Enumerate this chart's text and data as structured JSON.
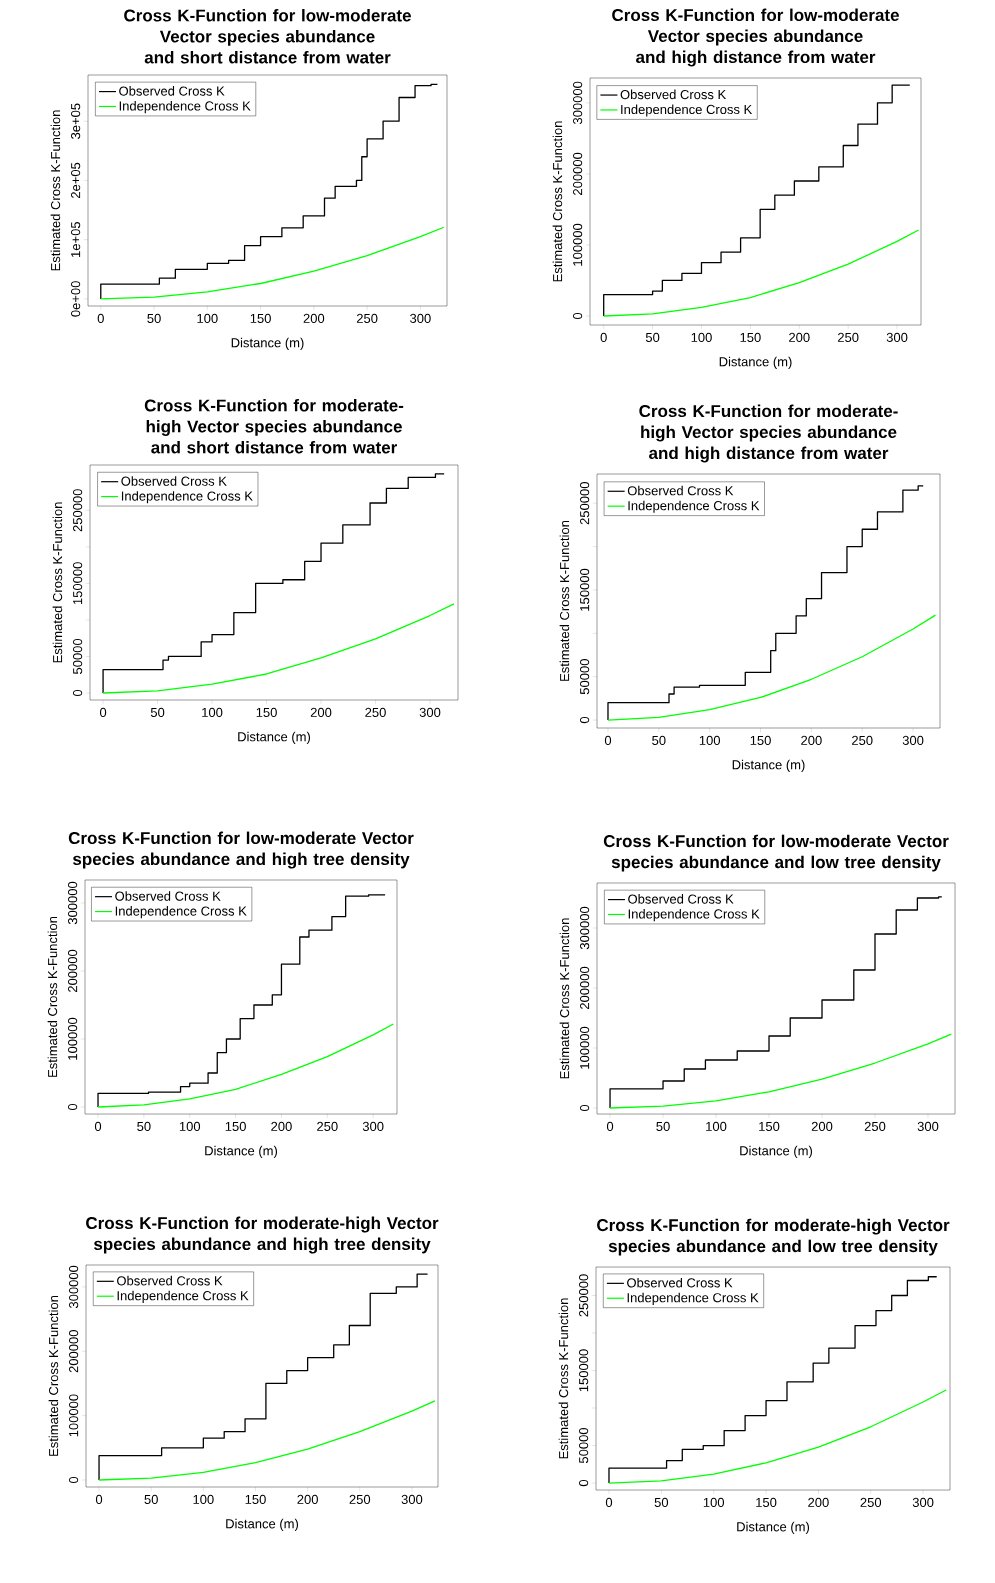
{
  "chart_data": [
    {
      "type": "line",
      "title": "Cross K-Function for low-moderate Vector species abundance and short distance from water",
      "xlabel": "Distance (m)",
      "ylabel": "Estimated Cross K-Function",
      "legend": "top left",
      "xlim": [
        -12,
        325
      ],
      "ylim": [
        -12000,
        378000
      ],
      "xticks": [
        0,
        50,
        100,
        150,
        200,
        250,
        300
      ],
      "yticks": [
        {
          "value": 0,
          "label": "0e+00"
        },
        {
          "value": 100000,
          "label": "1e+05"
        },
        {
          "value": 200000,
          "label": "2e+05"
        },
        {
          "value": 300000,
          "label": "3e+05"
        }
      ],
      "series": [
        {
          "name": "Observed Cross K",
          "type": "step",
          "color": "#000000",
          "x": [
            0,
            0,
            55,
            70,
            100,
            120,
            135,
            150,
            170,
            190,
            210,
            220,
            240,
            245,
            250,
            265,
            280,
            295,
            310,
            316
          ],
          "values": [
            0,
            25000,
            35000,
            50000,
            60000,
            65000,
            90000,
            105000,
            120000,
            140000,
            170000,
            190000,
            200000,
            240000,
            270000,
            300000,
            340000,
            360000,
            362000,
            362000
          ]
        },
        {
          "name": "Independence Cross K",
          "color": "#00ff00",
          "x": [
            0,
            50,
            100,
            150,
            200,
            250,
            300,
            322
          ],
          "values": [
            0,
            3000,
            12000,
            26000,
            47000,
            73000,
            105000,
            121000
          ]
        }
      ]
    },
    {
      "type": "line",
      "title": "Cross K-Function for low-moderate Vector species abundance and high distance from water",
      "xlabel": "Distance (m)",
      "ylabel": "Estimated Cross K-Function",
      "legend": "top left",
      "xlim": [
        -14,
        324.5
      ],
      "ylim": [
        -12700,
        335000
      ],
      "xticks": [
        0,
        50,
        100,
        150,
        200,
        250,
        300
      ],
      "yticks": [
        0,
        100000,
        200000,
        300000
      ],
      "series": [
        {
          "name": "Observed Cross K",
          "type": "step",
          "color": "#000000",
          "x": [
            0,
            0,
            50,
            60,
            80,
            100,
            120,
            140,
            160,
            175,
            195,
            220,
            245,
            260,
            280,
            295,
            312,
            313
          ],
          "values": [
            0,
            30000,
            35000,
            50000,
            60000,
            75000,
            90000,
            110000,
            150000,
            170000,
            190000,
            210000,
            240000,
            270000,
            300000,
            325000,
            325000,
            325000
          ]
        },
        {
          "name": "Independence Cross K",
          "type": "line",
          "color": "#00ff00",
          "x": [
            0,
            50,
            100,
            150,
            200,
            250,
            300,
            322
          ],
          "values": [
            0,
            3000,
            12000,
            26000,
            47000,
            73000,
            105000,
            121000
          ]
        }
      ]
    },
    {
      "type": "line",
      "title": "Cross K-Function for moderate-high Vector species abundance and short distance from water",
      "xlabel": "Distance (m)",
      "ylabel": "Estimated Cross K-Function",
      "legend": "top left",
      "xlim": [
        -12,
        325.7
      ],
      "ylim": [
        -9600,
        312000
      ],
      "xticks": [
        0,
        50,
        100,
        150,
        200,
        250,
        300
      ],
      "yticks": [
        0,
        50000,
        {
          "value": 100000,
          "label": null
        },
        150000,
        {
          "value": 200000,
          "label": null
        },
        250000
      ],
      "series": [
        {
          "name": "Observed Cross K",
          "type": "step",
          "color": "#000000",
          "x": [
            0,
            0,
            55,
            60,
            90,
            100,
            120,
            140,
            165,
            185,
            200,
            220,
            245,
            260,
            280,
            305,
            313
          ],
          "values": [
            0,
            32000,
            45000,
            50000,
            70000,
            80000,
            110000,
            150000,
            155000,
            180000,
            205000,
            230000,
            260000,
            280000,
            295000,
            300000,
            300000
          ]
        },
        {
          "name": "Independence Cross K",
          "type": "line",
          "color": "#00ff00",
          "x": [
            0,
            50,
            100,
            150,
            200,
            250,
            300,
            322
          ],
          "values": [
            0,
            3000,
            12000,
            26000,
            48000,
            74000,
            106000,
            122000
          ]
        }
      ]
    },
    {
      "type": "line",
      "title": "Cross K-Function for moderate-high Vector species abundance and high distance from water",
      "xlabel": "Distance (m)",
      "ylabel": "Estimated Cross K-Function",
      "legend": "top left",
      "xlim": [
        -10.8,
        326.5
      ],
      "ylim": [
        -9200,
        283700
      ],
      "xticks": [
        0,
        50,
        100,
        150,
        200,
        250,
        300
      ],
      "yticks": [
        0,
        50000,
        {
          "value": 100000,
          "label": null
        },
        150000,
        {
          "value": 200000,
          "label": null
        },
        250000
      ],
      "series": [
        {
          "name": "Observed Cross K",
          "type": "step",
          "color": "#000000",
          "x": [
            0,
            0,
            60,
            65,
            90,
            135,
            160,
            165,
            185,
            195,
            210,
            235,
            250,
            265,
            290,
            305,
            310
          ],
          "values": [
            0,
            20000,
            30000,
            38000,
            40000,
            55000,
            80000,
            100000,
            120000,
            140000,
            170000,
            200000,
            220000,
            240000,
            265000,
            270000,
            270000
          ]
        },
        {
          "name": "Independence Cross K",
          "type": "line",
          "color": "#00ff00",
          "x": [
            0,
            50,
            100,
            150,
            200,
            250,
            300,
            322
          ],
          "values": [
            0,
            3000,
            12000,
            26000,
            47000,
            73000,
            105000,
            121000
          ]
        }
      ]
    },
    {
      "type": "line",
      "title": "Cross K-Function for low-moderate Vector species abundance and high tree density",
      "xlabel": "Distance (m)",
      "ylabel": "Estimated Cross K-Function",
      "legend": "top left",
      "xlim": [
        -14.2,
        326
      ],
      "ylim": [
        -10300,
        333800
      ],
      "xticks": [
        0,
        50,
        100,
        150,
        200,
        250,
        300
      ],
      "yticks": [
        0,
        100000,
        200000,
        300000
      ],
      "series": [
        {
          "name": "Observed Cross K",
          "type": "step",
          "color": "#000000",
          "x": [
            0,
            0,
            55,
            90,
            100,
            120,
            130,
            140,
            155,
            170,
            190,
            200,
            220,
            230,
            255,
            270,
            295,
            313
          ],
          "values": [
            0,
            20000,
            22000,
            30000,
            35000,
            50000,
            80000,
            100000,
            130000,
            150000,
            165000,
            210000,
            250000,
            260000,
            280000,
            310000,
            312000,
            312000
          ]
        },
        {
          "name": "Independence Cross K",
          "type": "line",
          "color": "#00ff00",
          "x": [
            0,
            50,
            100,
            150,
            200,
            250,
            300,
            322
          ],
          "values": [
            0,
            3000,
            12000,
            26000,
            48000,
            74000,
            106000,
            122000
          ]
        }
      ]
    },
    {
      "type": "line",
      "title": "Cross K-Function for low-moderate Vector species abundance and low tree density",
      "xlabel": "Distance (m)",
      "ylabel": "Estimated Cross K-Function",
      "legend": "top left",
      "xlim": [
        -12.3,
        325.5
      ],
      "ylim": [
        -10000,
        375000
      ],
      "xticks": [
        0,
        50,
        100,
        150,
        200,
        250,
        300
      ],
      "yticks": [
        0,
        100000,
        200000,
        300000
      ],
      "series": [
        {
          "name": "Observed Cross K",
          "type": "step",
          "color": "#000000",
          "x": [
            0,
            0,
            50,
            70,
            90,
            120,
            150,
            170,
            200,
            230,
            250,
            270,
            290,
            310,
            313
          ],
          "values": [
            0,
            32000,
            45000,
            65000,
            80000,
            95000,
            120000,
            150000,
            180000,
            230000,
            290000,
            330000,
            350000,
            352000,
            352000
          ]
        },
        {
          "name": "Independence Cross K",
          "type": "line",
          "color": "#00ff00",
          "x": [
            0,
            50,
            100,
            150,
            200,
            250,
            300,
            322
          ],
          "values": [
            0,
            3000,
            12000,
            27000,
            48000,
            75000,
            107000,
            123000
          ]
        }
      ]
    },
    {
      "type": "line",
      "title": "Cross K-Function for moderate-high Vector species abundance and high tree density",
      "xlabel": "Distance (m)",
      "ylabel": "Estimated Cross K-Function",
      "legend": "top left",
      "xlim": [
        -12.5,
        325
      ],
      "ylim": [
        -10900,
        334000
      ],
      "xticks": [
        0,
        50,
        100,
        150,
        200,
        250,
        300
      ],
      "yticks": [
        0,
        100000,
        200000,
        300000
      ],
      "series": [
        {
          "name": "Observed Cross K",
          "type": "step",
          "color": "#000000",
          "x": [
            0,
            0,
            60,
            100,
            120,
            140,
            160,
            180,
            200,
            225,
            240,
            260,
            285,
            305,
            315
          ],
          "values": [
            0,
            38000,
            50000,
            65000,
            75000,
            95000,
            150000,
            170000,
            190000,
            210000,
            240000,
            290000,
            300000,
            320000,
            320000
          ]
        },
        {
          "name": "Independence Cross K",
          "type": "line",
          "color": "#00ff00",
          "x": [
            0,
            50,
            100,
            150,
            200,
            250,
            300,
            322
          ],
          "values": [
            0,
            3000,
            12000,
            27000,
            48000,
            75000,
            107000,
            123000
          ]
        }
      ]
    },
    {
      "type": "line",
      "title": "Cross K-Function for moderate-high Vector species abundance and low tree density",
      "xlabel": "Distance (m)",
      "ylabel": "Estimated Cross K-Function",
      "legend": "top left",
      "xlim": [
        -12.4,
        325.7
      ],
      "ylim": [
        -9300,
        288000
      ],
      "xticks": [
        0,
        50,
        100,
        150,
        200,
        250,
        300
      ],
      "yticks": [
        0,
        50000,
        {
          "value": 100000,
          "label": null
        },
        150000,
        {
          "value": 200000,
          "label": null
        },
        250000
      ],
      "series": [
        {
          "name": "Observed Cross K",
          "type": "step",
          "color": "#000000",
          "x": [
            0,
            0,
            55,
            70,
            90,
            110,
            130,
            150,
            170,
            195,
            210,
            235,
            255,
            270,
            285,
            305,
            313
          ],
          "values": [
            0,
            20000,
            30000,
            45000,
            50000,
            70000,
            90000,
            110000,
            135000,
            160000,
            180000,
            210000,
            230000,
            250000,
            270000,
            275000,
            275000
          ]
        },
        {
          "name": "Independence Cross K",
          "type": "line",
          "color": "#00ff00",
          "x": [
            0,
            50,
            100,
            150,
            200,
            250,
            300,
            322
          ],
          "values": [
            0,
            3000,
            12000,
            27000,
            48000,
            75000,
            108000,
            124000
          ]
        }
      ]
    }
  ]
}
